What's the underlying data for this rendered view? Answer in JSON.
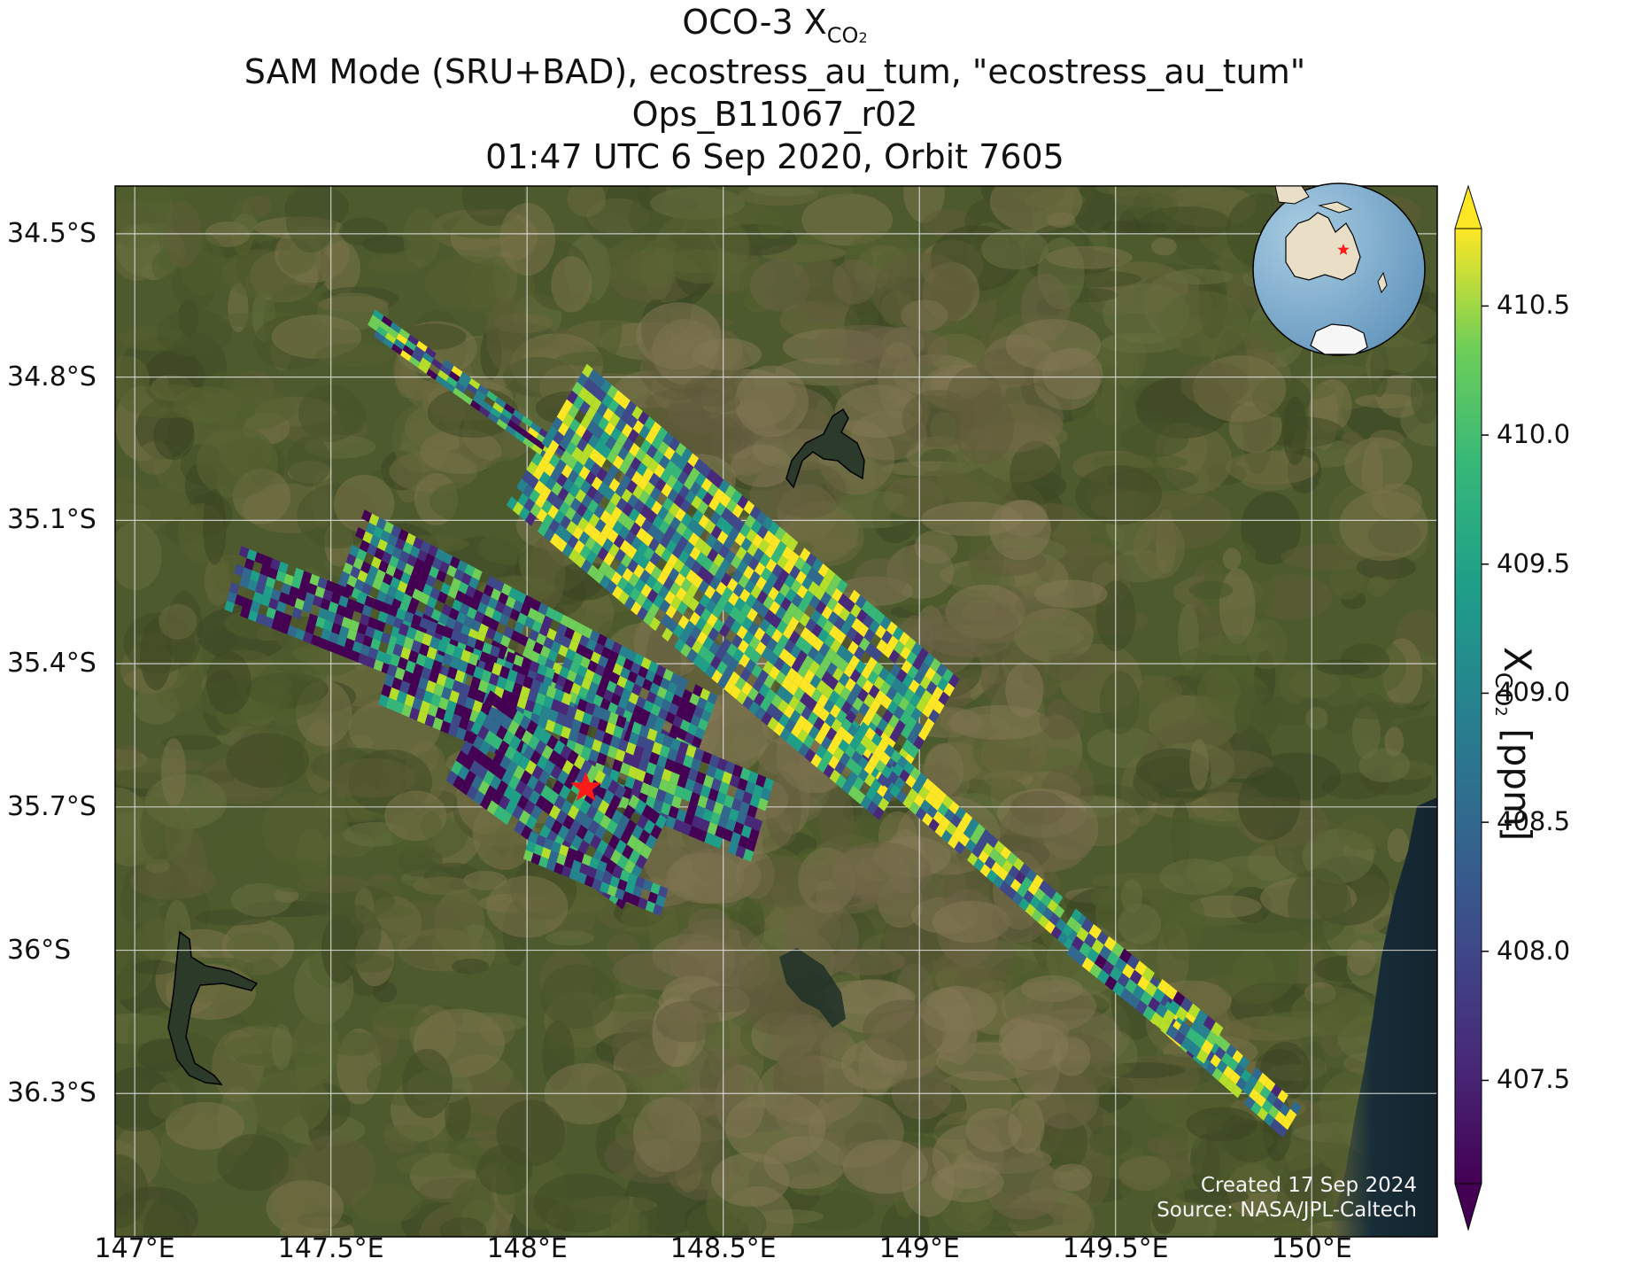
{
  "title": {
    "line1_main": "OCO-3 X",
    "line1_sub": "CO",
    "line1_subsub": "2",
    "line2": "SAM Mode (SRU+BAD), ecostress_au_tum, \"ecostress_au_tum\"",
    "line3": "Ops_B11067_r02",
    "line4": "01:47 UTC 6 Sep 2020, Orbit 7605"
  },
  "map": {
    "lat_ticks": [
      "34.5°S",
      "34.8°S",
      "35.1°S",
      "35.4°S",
      "35.7°S",
      "36°S",
      "36.3°S"
    ],
    "lon_ticks": [
      "147°E",
      "147.5°E",
      "148°E",
      "148.5°E",
      "149°E",
      "149.5°E",
      "150°E"
    ],
    "lat_values": [
      -34.5,
      -34.8,
      -35.1,
      -35.4,
      -35.7,
      -36.0,
      -36.3
    ],
    "lon_values": [
      147.0,
      147.5,
      148.0,
      148.5,
      149.0,
      149.5,
      150.0
    ],
    "extent": {
      "lon_min": 146.95,
      "lon_max": 150.32,
      "lat_min": -36.6,
      "lat_max": -34.4
    },
    "target_site": {
      "lon": 148.15,
      "lat": -35.66,
      "marker": "red-star"
    },
    "background": "satellite-imagery",
    "inset": "globe-centered-on-australia"
  },
  "colorbar": {
    "label_main": "X",
    "label_sub": "CO",
    "label_subsub": "2",
    "label_unit": " [ppm]",
    "ticks": [
      "407.5",
      "408.0",
      "408.5",
      "409.0",
      "409.5",
      "410.0",
      "410.5"
    ],
    "tick_values": [
      407.5,
      408.0,
      408.5,
      409.0,
      409.5,
      410.0,
      410.5
    ],
    "range": [
      407.1,
      410.8
    ],
    "colormap": "viridis",
    "extend": "both"
  },
  "credits": {
    "created": "Created 17 Sep 2024",
    "source": "Source: NASA/JPL-Caltech"
  }
}
